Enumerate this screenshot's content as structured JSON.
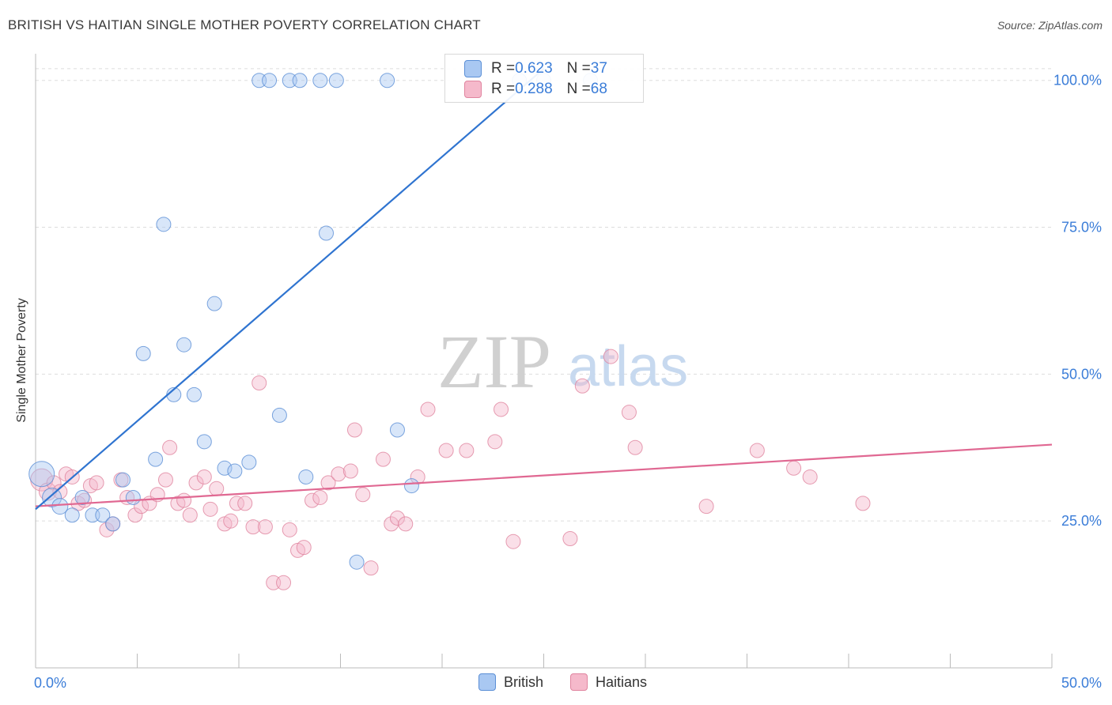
{
  "header": {
    "title": "BRITISH VS HAITIAN SINGLE MOTHER POVERTY CORRELATION CHART",
    "source": "Source: ZipAtlas.com"
  },
  "watermark": {
    "zip": "ZIP",
    "atlas": "atlas"
  },
  "colors": {
    "british_fill": "#a9c8f2",
    "british_stroke": "#5b8fd6",
    "british_line": "#2f74d0",
    "haitian_fill": "#f5b9cb",
    "haitian_stroke": "#e0849f",
    "haitian_line": "#e06892",
    "tick_text": "#3b7dd8",
    "grid": "#dddddd"
  },
  "legend_box": {
    "rows": [
      {
        "r_label": "R = ",
        "r_value": "0.623",
        "n_label": "N = ",
        "n_value": "37"
      },
      {
        "r_label": "R = ",
        "r_value": "0.288",
        "n_label": "N = ",
        "n_value": "68"
      }
    ]
  },
  "bottom_legend": {
    "items": [
      "British",
      "Haitians"
    ]
  },
  "chart_data": {
    "type": "scatter",
    "title": "BRITISH VS HAITIAN SINGLE MOTHER POVERTY CORRELATION CHART",
    "xlabel": "",
    "ylabel": "Single Mother Poverty",
    "xlim": [
      0,
      50
    ],
    "ylim": [
      0,
      104
    ],
    "x_tick_labels": [
      {
        "x": 0,
        "label": "0.0%"
      },
      {
        "x": 50,
        "label": "50.0%"
      }
    ],
    "y_tick_labels": [
      {
        "y": 25,
        "label": "25.0%"
      },
      {
        "y": 50,
        "label": "50.0%"
      },
      {
        "y": 75,
        "label": "75.0%"
      },
      {
        "y": 100,
        "label": "100.0%"
      }
    ],
    "x_minor_ticks": [
      0,
      5,
      10,
      15,
      20,
      25,
      30,
      35,
      40,
      45,
      50
    ],
    "grid": true,
    "series": [
      {
        "name": "British",
        "trend": {
          "x": [
            0,
            25
          ],
          "y": [
            27,
            102
          ]
        },
        "points": [
          [
            0.3,
            33,
            16
          ],
          [
            0.8,
            29,
            12
          ],
          [
            1.2,
            27.5,
            10
          ],
          [
            1.8,
            26,
            9
          ],
          [
            2.3,
            29,
            9
          ],
          [
            2.8,
            26,
            9
          ],
          [
            3.3,
            26,
            9
          ],
          [
            3.8,
            24.5,
            9
          ],
          [
            4.3,
            32,
            9
          ],
          [
            4.8,
            29,
            9
          ],
          [
            5.3,
            53.5,
            9
          ],
          [
            5.9,
            35.5,
            9
          ],
          [
            6.3,
            75.5,
            9
          ],
          [
            6.8,
            46.5,
            9
          ],
          [
            7.3,
            55,
            9
          ],
          [
            7.8,
            46.5,
            9
          ],
          [
            8.3,
            38.5,
            9
          ],
          [
            8.8,
            62,
            9
          ],
          [
            9.3,
            34,
            9
          ],
          [
            9.8,
            33.5,
            9
          ],
          [
            10.5,
            35,
            9
          ],
          [
            11,
            100,
            9
          ],
          [
            11.5,
            100,
            9
          ],
          [
            12,
            43,
            9
          ],
          [
            12.5,
            100,
            9
          ],
          [
            13,
            100,
            9
          ],
          [
            13.3,
            32.5,
            9
          ],
          [
            14,
            100,
            9
          ],
          [
            14.3,
            74,
            9
          ],
          [
            14.8,
            100,
            9
          ],
          [
            15.8,
            18,
            9
          ],
          [
            17.3,
            100,
            9
          ],
          [
            17.8,
            40.5,
            9
          ],
          [
            18.5,
            31,
            9
          ],
          [
            23.8,
            100,
            9
          ],
          [
            25,
            100,
            9
          ],
          [
            27.3,
            100,
            9
          ]
        ]
      },
      {
        "name": "Haitians",
        "trend": {
          "x": [
            0,
            50
          ],
          "y": [
            27.5,
            38
          ]
        },
        "points": [
          [
            0.3,
            32,
            14
          ],
          [
            0.6,
            30,
            11
          ],
          [
            0.9,
            31.5,
            9
          ],
          [
            1.2,
            30,
            9
          ],
          [
            1.5,
            33,
            9
          ],
          [
            1.8,
            32.5,
            9
          ],
          [
            2.1,
            28,
            9
          ],
          [
            2.4,
            28.5,
            9
          ],
          [
            2.7,
            31,
            9
          ],
          [
            3,
            31.5,
            9
          ],
          [
            3.5,
            23.5,
            9
          ],
          [
            3.8,
            24.5,
            9
          ],
          [
            4.2,
            32,
            9
          ],
          [
            4.5,
            29,
            9
          ],
          [
            4.9,
            26,
            9
          ],
          [
            5.2,
            27.5,
            9
          ],
          [
            5.6,
            28,
            9
          ],
          [
            6,
            29.5,
            9
          ],
          [
            6.4,
            32,
            9
          ],
          [
            6.6,
            37.5,
            9
          ],
          [
            7,
            28,
            9
          ],
          [
            7.3,
            28.5,
            9
          ],
          [
            7.6,
            26,
            9
          ],
          [
            7.9,
            31.5,
            9
          ],
          [
            8.3,
            32.5,
            9
          ],
          [
            8.6,
            27,
            9
          ],
          [
            8.9,
            30.5,
            9
          ],
          [
            9.3,
            24.5,
            9
          ],
          [
            9.6,
            25,
            9
          ],
          [
            9.9,
            28,
            9
          ],
          [
            10.3,
            28,
            9
          ],
          [
            10.7,
            24,
            9
          ],
          [
            11,
            48.5,
            9
          ],
          [
            11.3,
            24,
            9
          ],
          [
            11.7,
            14.5,
            9
          ],
          [
            12.2,
            14.5,
            9
          ],
          [
            12.5,
            23.5,
            9
          ],
          [
            12.9,
            20,
            9
          ],
          [
            13.2,
            20.5,
            9
          ],
          [
            13.6,
            28.5,
            9
          ],
          [
            14,
            29,
            9
          ],
          [
            14.4,
            31.5,
            9
          ],
          [
            14.9,
            33,
            9
          ],
          [
            15.5,
            33.5,
            9
          ],
          [
            15.7,
            40.5,
            9
          ],
          [
            16.1,
            29.5,
            9
          ],
          [
            16.5,
            17,
            9
          ],
          [
            17.1,
            35.5,
            9
          ],
          [
            17.5,
            24.5,
            9
          ],
          [
            17.8,
            25.5,
            9
          ],
          [
            18.2,
            24.5,
            9
          ],
          [
            18.8,
            32.5,
            9
          ],
          [
            19.3,
            44,
            9
          ],
          [
            20.2,
            37,
            9
          ],
          [
            21.2,
            37,
            9
          ],
          [
            22.6,
            38.5,
            9
          ],
          [
            22.9,
            44,
            9
          ],
          [
            23.5,
            21.5,
            9
          ],
          [
            26.3,
            22,
            9
          ],
          [
            26.9,
            48,
            9
          ],
          [
            28.3,
            53,
            9
          ],
          [
            29.2,
            43.5,
            9
          ],
          [
            29.5,
            37.5,
            9
          ],
          [
            33,
            27.5,
            9
          ],
          [
            35.5,
            37,
            9
          ],
          [
            37.3,
            34,
            9
          ],
          [
            38.1,
            32.5,
            9
          ],
          [
            40.7,
            28,
            9
          ]
        ]
      }
    ]
  }
}
